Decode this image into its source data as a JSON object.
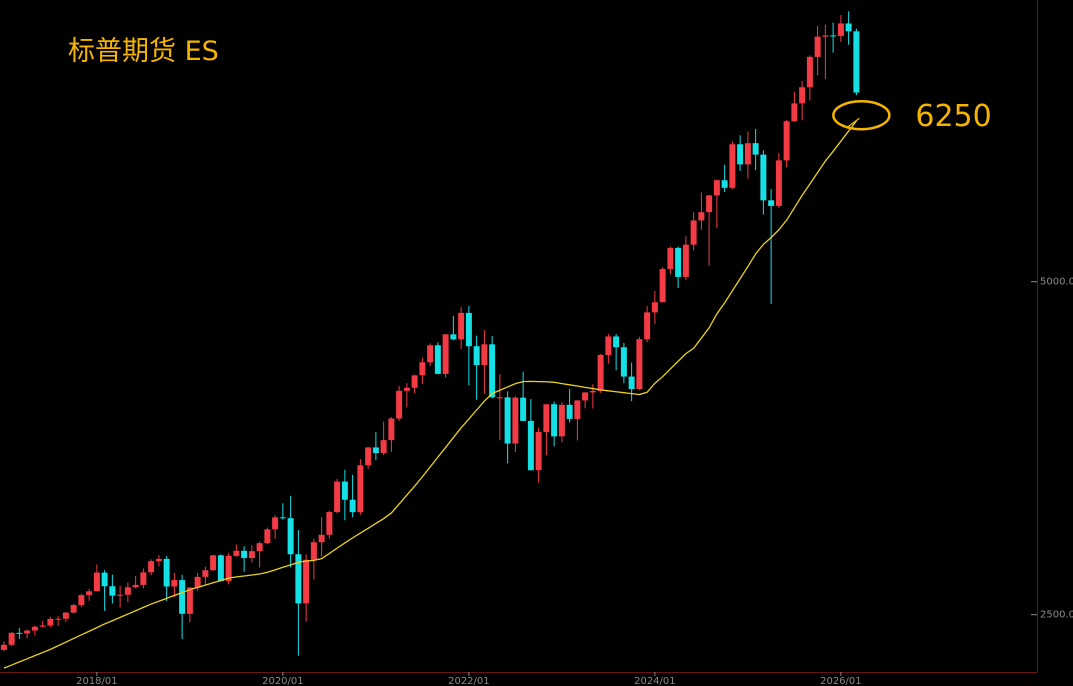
{
  "chart_data": {
    "type": "candlestick",
    "title": "标普期货  ES",
    "categories": [
      null,
      null,
      null,
      null,
      null,
      null,
      null,
      null,
      null,
      null,
      null,
      null,
      "2018/01",
      null,
      null,
      null,
      null,
      null,
      null,
      null,
      null,
      null,
      null,
      null,
      null,
      null,
      null,
      null,
      null,
      null,
      null,
      null,
      null,
      null,
      null,
      null,
      "2020/01",
      null,
      null,
      null,
      null,
      null,
      null,
      null,
      null,
      null,
      null,
      null,
      null,
      null,
      null,
      null,
      null,
      null,
      null,
      null,
      null,
      null,
      null,
      null,
      "2022/01",
      null,
      null,
      null,
      null,
      null,
      null,
      null,
      null,
      null,
      null,
      null,
      null,
      null,
      null,
      null,
      null,
      null,
      null,
      null,
      null,
      null,
      null,
      null,
      "2024/01",
      null,
      null,
      null,
      null,
      null,
      null,
      null,
      null,
      null,
      null,
      null,
      null,
      null,
      null,
      null,
      null,
      null,
      null,
      null,
      null,
      null,
      null,
      null,
      "2026/01",
      null,
      null
    ],
    "open": [
      2236,
      2274,
      2364,
      2359,
      2381,
      2410,
      2419,
      2468,
      2470,
      2516,
      2573,
      2647,
      2676,
      2816,
      2714,
      2643,
      2650,
      2706,
      2724,
      2818,
      2902,
      2919,
      2712,
      2760,
      2507,
      2704,
      2784,
      2834,
      2946,
      2752,
      2942,
      2980,
      2926,
      2977,
      3037,
      3141,
      3231,
      3225,
      2954,
      2585,
      2912,
      3044,
      3100,
      3271,
      3500,
      3363,
      3270,
      3622,
      3756,
      3714,
      3811,
      3973,
      4181,
      4204,
      4297,
      4395,
      4523,
      4308,
      4605,
      4567,
      4766,
      4516,
      4374,
      4530,
      4132,
      4132,
      3785,
      4130,
      3955,
      3585,
      3872,
      4080,
      3839,
      4076,
      3970,
      4109,
      4169,
      4180,
      4450,
      4589,
      4508,
      4288,
      4194,
      4568,
      4770,
      4846,
      5096,
      5254,
      5036,
      5278,
      5460,
      5522,
      5648,
      5762,
      5705,
      6032,
      5881,
      6040,
      5954,
      5611,
      5569,
      5911,
      6205,
      6339,
      6460,
      6688,
      6840,
      6849,
      6845,
      6939,
      6880
    ],
    "high": [
      2300,
      2370,
      2401,
      2390,
      2418,
      2453,
      2484,
      2490,
      2519,
      2582,
      2657,
      2694,
      2878,
      2835,
      2801,
      2717,
      2742,
      2791,
      2848,
      2916,
      2947,
      2940,
      2815,
      2800,
      2708,
      2813,
      2860,
      2949,
      2954,
      2964,
      3027,
      3014,
      3021,
      3050,
      3154,
      3247,
      3337,
      3393,
      3136,
      2954,
      3068,
      3233,
      3280,
      3521,
      3588,
      3550,
      3668,
      3760,
      3870,
      3950,
      3983,
      4218,
      4238,
      4302,
      4429,
      4537,
      4546,
      4608,
      4743,
      4808,
      4818,
      4595,
      4637,
      4593,
      4307,
      4177,
      4140,
      4325,
      4119,
      3905,
      4080,
      4100,
      4094,
      4195,
      4110,
      4170,
      4231,
      4458,
      4608,
      4607,
      4541,
      4393,
      4587,
      4818,
      4931,
      5111,
      5264,
      5264,
      5341,
      5523,
      5670,
      5651,
      5767,
      5878,
      6053,
      6099,
      6128,
      6147,
      5986,
      5695,
      5968,
      6215,
      6427,
      6508,
      6699,
      6920,
      6930,
      6945,
      7002,
      7030,
      6900
    ],
    "low": [
      2228,
      2266,
      2318,
      2322,
      2344,
      2405,
      2407,
      2417,
      2446,
      2510,
      2557,
      2605,
      2676,
      2529,
      2585,
      2553,
      2594,
      2698,
      2698,
      2796,
      2864,
      2603,
      2631,
      2317,
      2443,
      2681,
      2722,
      2828,
      2750,
      2728,
      2936,
      2822,
      2891,
      2855,
      3030,
      3070,
      3214,
      2855,
      2192,
      2448,
      2766,
      2936,
      3070,
      3260,
      3209,
      3233,
      3250,
      3595,
      3660,
      3700,
      3723,
      3955,
      4057,
      4164,
      4233,
      4367,
      4305,
      4279,
      4560,
      4495,
      4222,
      4114,
      4157,
      4124,
      3810,
      3637,
      3721,
      3954,
      3584,
      3492,
      3698,
      3764,
      3794,
      3943,
      3808,
      4049,
      4048,
      4166,
      4385,
      4335,
      4238,
      4103,
      4187,
      4546,
      4683,
      4845,
      5056,
      4953,
      5011,
      5234,
      5390,
      5120,
      5402,
      5674,
      5696,
      5832,
      5773,
      5837,
      5504,
      4832,
      5552,
      5861,
      6201,
      6212,
      6360,
      6550,
      6521,
      6720,
      6800,
      6780,
      6400
    ],
    "close": [
      2274,
      2364,
      2359,
      2381,
      2410,
      2419,
      2468,
      2470,
      2516,
      2573,
      2647,
      2676,
      2816,
      2714,
      2643,
      2650,
      2706,
      2724,
      2818,
      2902,
      2919,
      2712,
      2760,
      2507,
      2704,
      2784,
      2834,
      2946,
      2752,
      2942,
      2980,
      2926,
      2977,
      3037,
      3141,
      3231,
      3225,
      2954,
      2585,
      2912,
      3044,
      3100,
      3271,
      3500,
      3363,
      3270,
      3622,
      3756,
      3714,
      3811,
      3973,
      4181,
      4204,
      4297,
      4395,
      4523,
      4308,
      4605,
      4567,
      4766,
      4516,
      4374,
      4530,
      4132,
      4132,
      3785,
      4130,
      3955,
      3585,
      3872,
      4080,
      3839,
      4076,
      3970,
      4109,
      4169,
      4180,
      4450,
      4589,
      4508,
      4288,
      4194,
      4568,
      4770,
      4846,
      5096,
      5254,
      5036,
      5278,
      5460,
      5522,
      5648,
      5762,
      5705,
      6032,
      5881,
      6040,
      5954,
      5611,
      5569,
      5911,
      6205,
      6339,
      6460,
      6688,
      6840,
      6849,
      6845,
      6939,
      6880,
      6420
    ],
    "up_color": "#f23b45",
    "down_color": "#14e0e6",
    "ma": {
      "color": "#e8d21a",
      "values": [
        2099,
        2122,
        2146,
        2169,
        2193,
        2216,
        2240,
        2267,
        2294,
        2322,
        2349,
        2376,
        2403,
        2431,
        2455,
        2480,
        2505,
        2530,
        2555,
        2580,
        2601,
        2623,
        2645,
        2666,
        2688,
        2705,
        2722,
        2740,
        2757,
        2775,
        2784,
        2791,
        2798,
        2806,
        2819,
        2837,
        2856,
        2874,
        2893,
        2903,
        2908,
        2921,
        2960,
        3000,
        3039,
        3077,
        3113,
        3149,
        3185,
        3221,
        3264,
        3331,
        3398,
        3465,
        3536,
        3609,
        3683,
        3756,
        3830,
        3903,
        3970,
        4037,
        4104,
        4160,
        4185,
        4210,
        4235,
        4250,
        4252,
        4250,
        4249,
        4245,
        4235,
        4226,
        4217,
        4207,
        4198,
        4188,
        4181,
        4174,
        4167,
        4160,
        4153,
        4170,
        4238,
        4287,
        4345,
        4403,
        4460,
        4500,
        4577,
        4654,
        4759,
        4841,
        4932,
        5023,
        5114,
        5209,
        5280,
        5332,
        5390,
        5462,
        5555,
        5648,
        5734,
        5820,
        5906,
        5979,
        6055,
        6131,
        6207
      ]
    },
    "ylim": [
      2070,
      7115
    ],
    "yticks": [
      {
        "value": 2500,
        "label": "2500.0"
      },
      {
        "value": 5000,
        "label": "5000.0"
      }
    ],
    "annotation": {
      "value": 6250,
      "color": "#f5b400"
    }
  }
}
